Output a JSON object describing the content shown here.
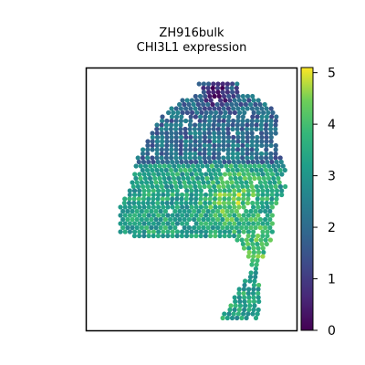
{
  "chart_data": {
    "type": "scatter",
    "title": "ZH916bulk",
    "subtitle": "CHI3L1 expression",
    "xlabel": "",
    "ylabel": "",
    "colorbar": {
      "label": "",
      "range": [
        0,
        5.1
      ],
      "ticks": [
        "0",
        "1",
        "2",
        "3",
        "4",
        "5"
      ],
      "colormap": "viridis"
    },
    "grid": false,
    "legend": "none",
    "markers": "hexagonal spatial spots"
  }
}
